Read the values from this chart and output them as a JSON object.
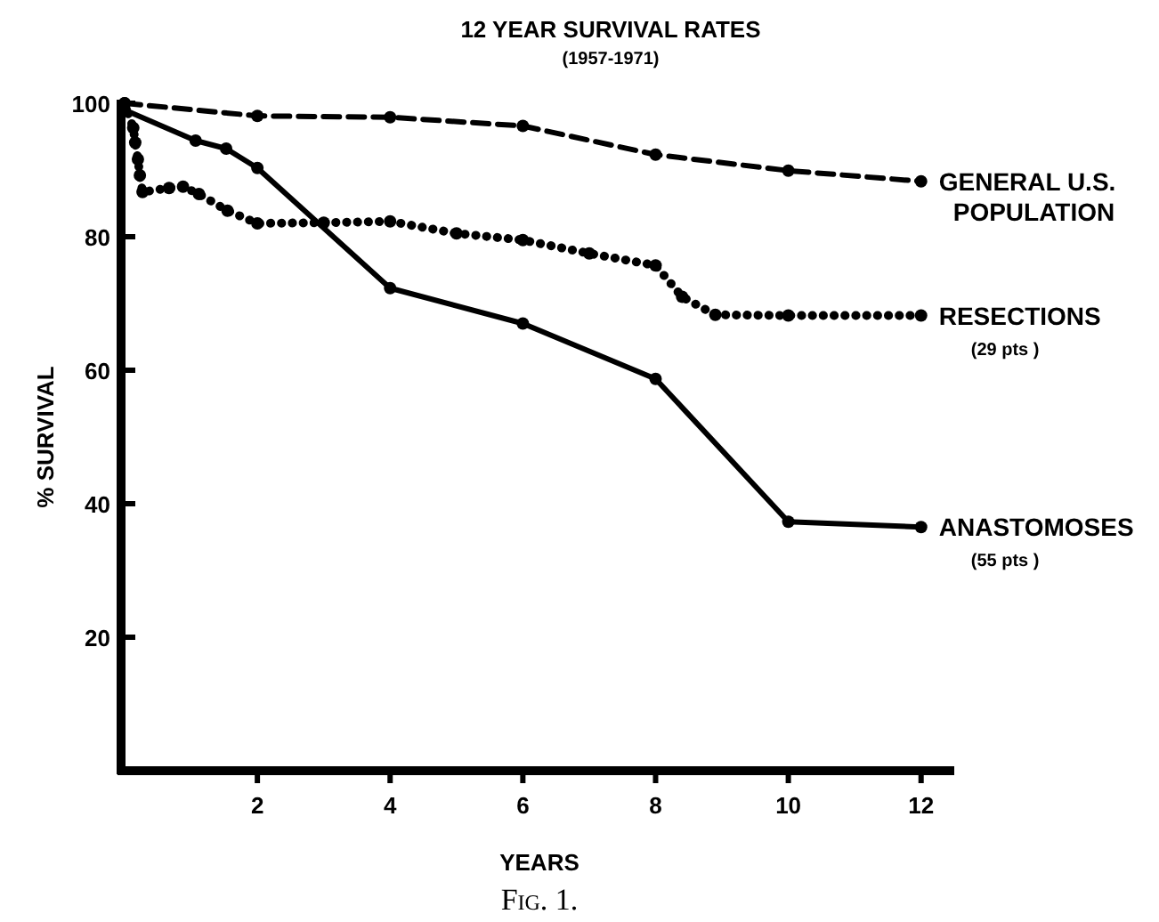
{
  "chart_data": {
    "type": "line",
    "title": "12 YEAR SURVIVAL RATES",
    "subtitle": "(1957-1971)",
    "xlabel": "YEARS",
    "ylabel": "% SURVIVAL",
    "xlim": [
      0,
      12.5
    ],
    "xticks": [
      2,
      4,
      6,
      8,
      10,
      12
    ],
    "ylim": [
      0,
      100
    ],
    "yticks": [
      20,
      40,
      60,
      80,
      100
    ],
    "grid": false,
    "marker": "circle",
    "series": [
      {
        "name": "GENERAL U.S. POPULATION",
        "color": "#000000",
        "line_style": "dashed",
        "x": [
          0,
          2,
          4,
          6,
          8,
          10,
          12
        ],
        "values": [
          100,
          98.1,
          97.9,
          96.6,
          92.3,
          89.9,
          88.3
        ]
      },
      {
        "name": "RESECTIONS",
        "color": "#000000",
        "line_style": "dotted",
        "x": [
          0,
          0.13,
          0.16,
          0.2,
          0.23,
          0.27,
          0.67,
          0.88,
          1.12,
          1.55,
          2,
          3,
          4,
          5,
          6,
          7,
          8,
          8.4,
          8.9,
          10,
          12
        ],
        "values": [
          100,
          96.3,
          94.1,
          91.6,
          89.2,
          86.7,
          87.3,
          87.5,
          86.4,
          83.9,
          82,
          82.1,
          82.3,
          80.5,
          79.5,
          77.5,
          75.7,
          71,
          68.3,
          68.2,
          68.2
        ]
      },
      {
        "name": "ANASTOMOSES",
        "color": "#000000",
        "line_style": "solid",
        "x": [
          0,
          1.07,
          1.53,
          2,
          4,
          6,
          8,
          10,
          12
        ],
        "values": [
          99,
          94.4,
          93.2,
          90.3,
          72.3,
          67,
          58.7,
          37.3,
          36.5
        ]
      }
    ],
    "annotations": [
      "(29 pts )",
      "(55 pts )",
      "Fig. 1."
    ]
  }
}
